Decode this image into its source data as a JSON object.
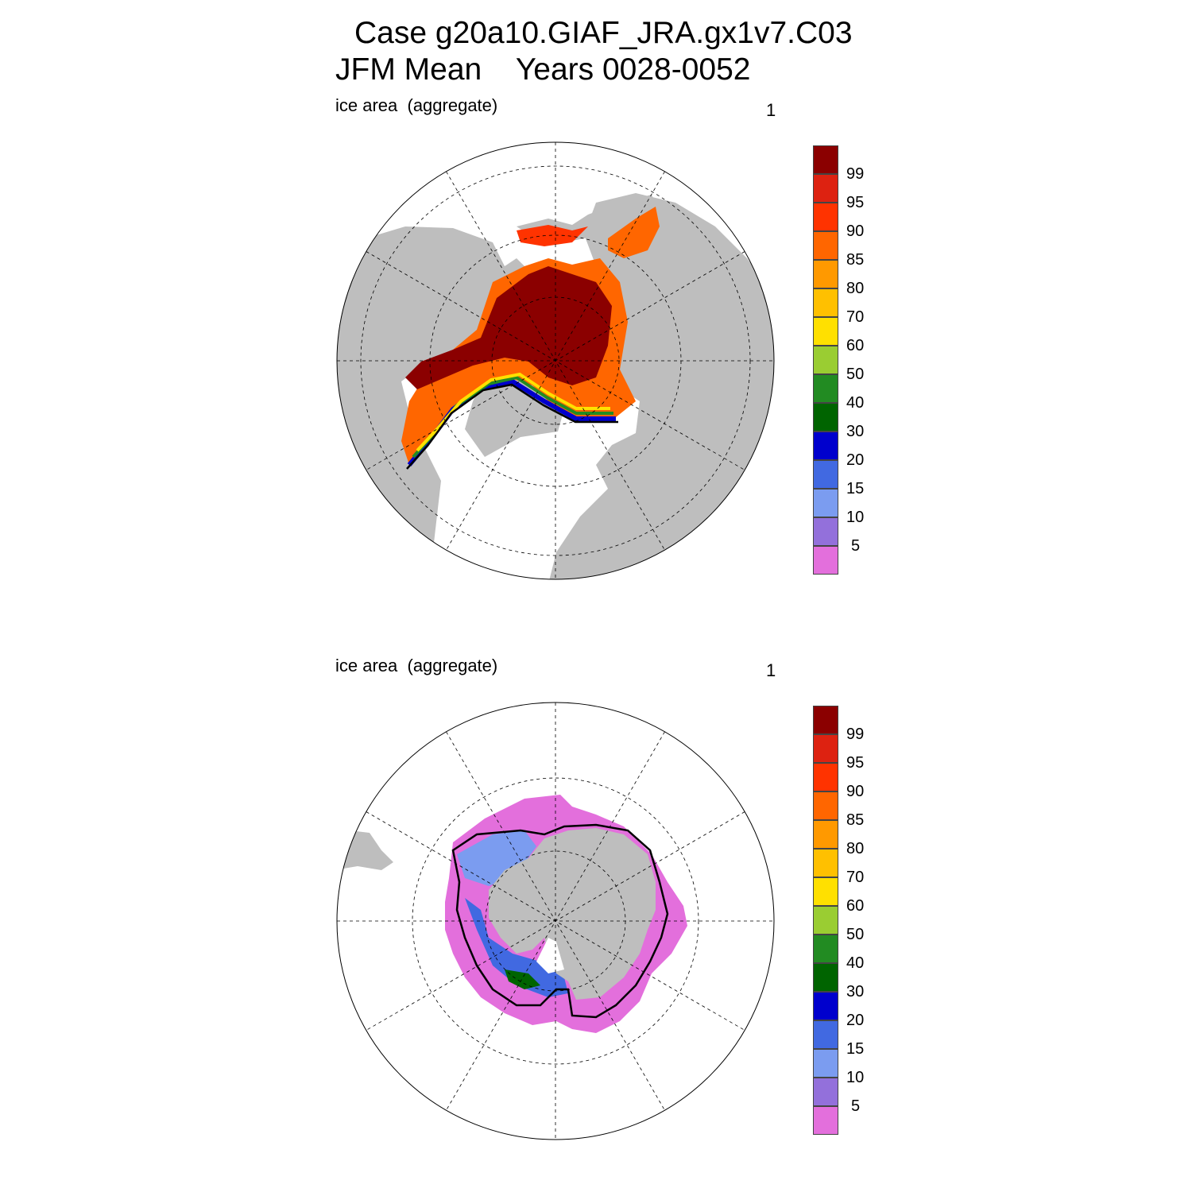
{
  "title_line1": "Case g20a10.GIAF_JRA.gx1v7.C03",
  "title_line2": "JFM Mean    Years 0028-0052",
  "colors": {
    "land": "#bebebe",
    "ocean": "#ffffff",
    "levels": [
      "#e36fdc",
      "#9370db",
      "#7b9cf0",
      "#4169e1",
      "#0000cd",
      "#006400",
      "#228b22",
      "#9acd32",
      "#ffe000",
      "#ffc000",
      "#ff9900",
      "#ff6600",
      "#ff3300",
      "#dd2211",
      "#8b0000"
    ]
  },
  "panels": [
    {
      "id": "nh",
      "label": "ice area  (aggregate)",
      "number": "1",
      "hemisphere": "north"
    },
    {
      "id": "sh",
      "label": "ice area  (aggregate)",
      "number": "1",
      "hemisphere": "south"
    }
  ],
  "colorbar": {
    "labels": [
      "99",
      "95",
      "90",
      "85",
      "80",
      "70",
      "60",
      "50",
      "40",
      "30",
      "20",
      "15",
      "10",
      "5"
    ]
  }
}
